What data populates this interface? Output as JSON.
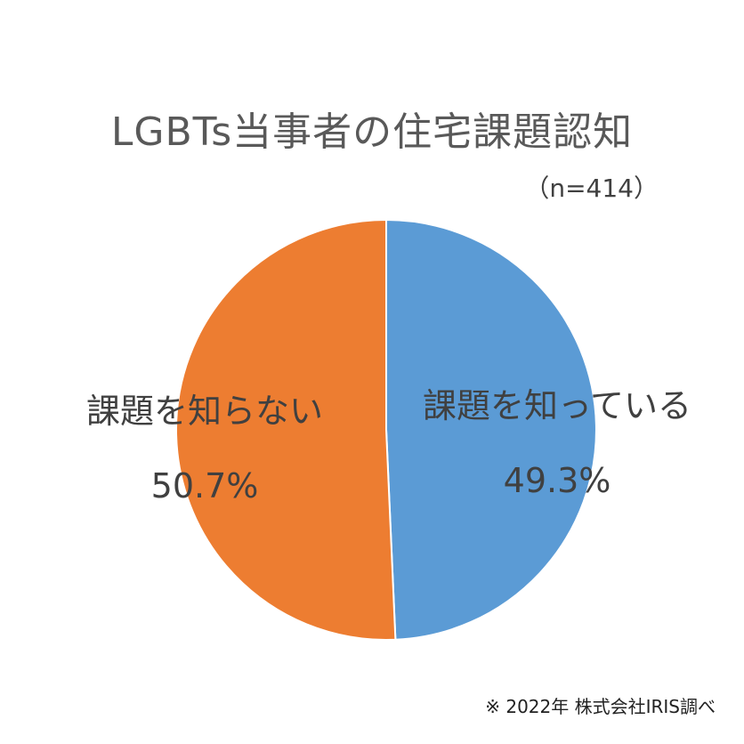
{
  "chart_data": {
    "type": "pie",
    "title": "LGBTs当事者の住宅課題認知",
    "subtitle": "（n=414）",
    "slices": [
      {
        "label": "課題を知っている",
        "value": 49.3,
        "value_label": "49.3%",
        "color": "#5B9BD5"
      },
      {
        "label": "課題を知らない",
        "value": 50.7,
        "value_label": "50.7%",
        "color": "#ED7D31"
      }
    ],
    "start_angle_deg": 0,
    "direction": "clockwise",
    "legend": "none"
  },
  "footer": {
    "source": "※ 2022年 株式会社IRIS調べ"
  }
}
